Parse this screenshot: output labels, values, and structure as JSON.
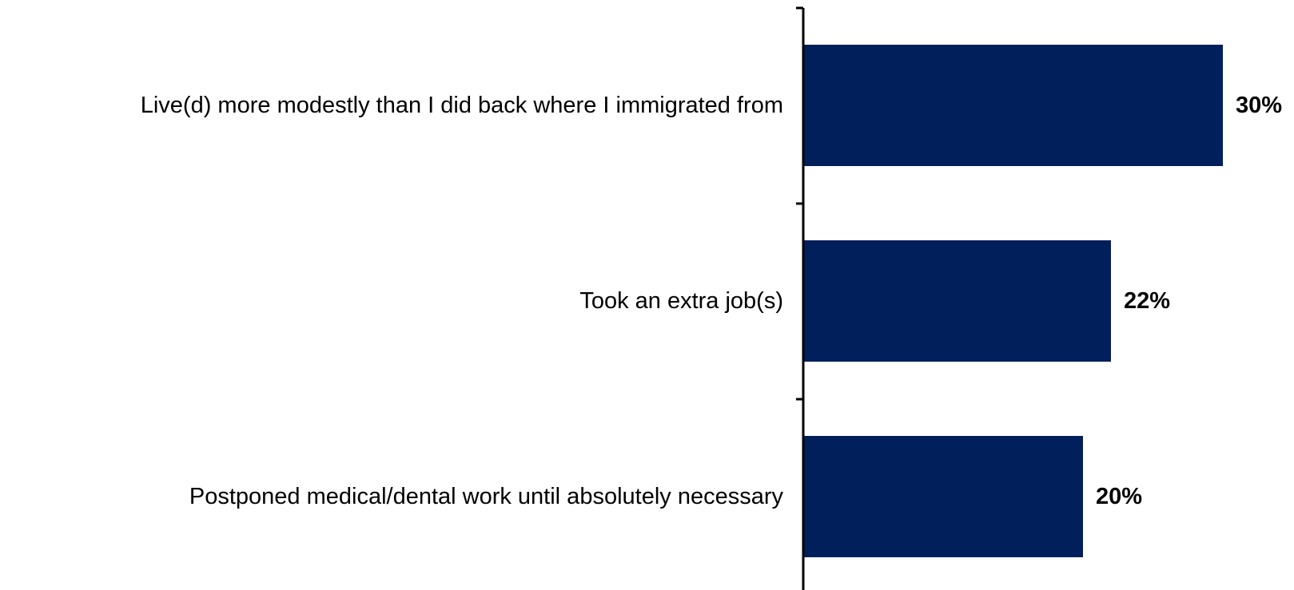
{
  "chart_data": {
    "type": "bar",
    "orientation": "horizontal",
    "categories": [
      "Live(d) more modestly than I did back where I immigrated from",
      "Took an extra job(s)",
      "Postponed medical/dental work until absolutely necessary"
    ],
    "values": [
      30,
      22,
      20
    ],
    "value_labels": [
      "30%",
      "22%",
      "20%"
    ],
    "bar_color": "#001F5B",
    "axis_color": "#000000",
    "title": "",
    "xlabel": "",
    "ylabel": "",
    "xlim": [
      0,
      30
    ],
    "grid": false,
    "legend": "none"
  }
}
